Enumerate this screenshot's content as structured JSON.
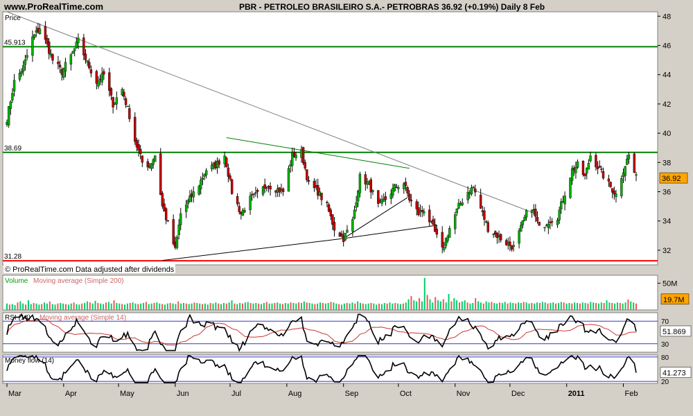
{
  "header": {
    "site": "www.ProRealTime.com",
    "title": "PBR - PETROLEO BRASILEIRO S.A.- PETROBRAS     36.92 (+0.19%)    Daily  8 Feb"
  },
  "chart_data": {
    "type": "candlestick",
    "symbol": "PBR",
    "name": "PETROLEO BRASILEIRO S.A.- PETROBRAS",
    "last_price": "36.92",
    "change": "(+0.19%)",
    "period": "Daily",
    "date": "8 Feb",
    "panel_label": "Price",
    "watermark": "© ProRealTime.com  Data adjusted after dividends",
    "y_ticks": [
      48,
      46,
      44,
      42,
      40,
      38,
      36,
      34,
      32
    ],
    "ylim": [
      31,
      48.3
    ],
    "x_labels": [
      "Mar",
      "Apr",
      "May",
      "Jun",
      "Jul",
      "Aug",
      "Sep",
      "Oct",
      "Nov",
      "Dec",
      "2011",
      "Feb"
    ],
    "horizontal_levels": [
      {
        "label": "45.913",
        "value": 45.913,
        "color": "#008000"
      },
      {
        "label": "38.69",
        "value": 38.69,
        "color": "#008000"
      },
      {
        "label": "31.28",
        "value": 31.28,
        "color": "#ff0000"
      }
    ],
    "price_label": "36.92",
    "price_path": [
      [
        "2010-03-01",
        41.0
      ],
      [
        "2010-03-05",
        43.5
      ],
      [
        "2010-03-10",
        44.5
      ],
      [
        "2010-03-15",
        46.5
      ],
      [
        "2010-03-19",
        47.2
      ],
      [
        "2010-03-23",
        46.0
      ],
      [
        "2010-03-26",
        45.0
      ],
      [
        "2010-03-31",
        44.2
      ],
      [
        "2010-04-06",
        45.5
      ],
      [
        "2010-04-09",
        46.3
      ],
      [
        "2010-04-14",
        44.8
      ],
      [
        "2010-04-19",
        43.5
      ],
      [
        "2010-04-23",
        44.0
      ],
      [
        "2010-04-28",
        42.0
      ],
      [
        "2010-05-03",
        43.0
      ],
      [
        "2010-05-07",
        41.2
      ],
      [
        "2010-05-10",
        39.5
      ],
      [
        "2010-05-14",
        38.0
      ],
      [
        "2010-05-18",
        37.8
      ],
      [
        "2010-05-21",
        38.5
      ],
      [
        "2010-05-25",
        35.0
      ],
      [
        "2010-05-28",
        33.8
      ],
      [
        "2010-06-01",
        32.0
      ],
      [
        "2010-06-04",
        34.5
      ],
      [
        "2010-06-09",
        35.5
      ],
      [
        "2010-06-14",
        36.5
      ],
      [
        "2010-06-18",
        37.5
      ],
      [
        "2010-06-23",
        37.8
      ],
      [
        "2010-06-28",
        38.5
      ],
      [
        "2010-07-02",
        36.0
      ],
      [
        "2010-07-07",
        34.5
      ],
      [
        "2010-07-12",
        35.5
      ],
      [
        "2010-07-16",
        35.8
      ],
      [
        "2010-07-21",
        36.5
      ],
      [
        "2010-07-26",
        36.2
      ],
      [
        "2010-07-30",
        36.0
      ],
      [
        "2010-08-04",
        38.5
      ],
      [
        "2010-08-09",
        38.7
      ],
      [
        "2010-08-13",
        36.5
      ],
      [
        "2010-08-18",
        36.0
      ],
      [
        "2010-08-23",
        35.0
      ],
      [
        "2010-08-27",
        33.5
      ],
      [
        "2010-09-01",
        32.8
      ],
      [
        "2010-09-06",
        34.0
      ],
      [
        "2010-09-10",
        37.0
      ],
      [
        "2010-09-15",
        36.5
      ],
      [
        "2010-09-20",
        35.0
      ],
      [
        "2010-09-24",
        35.5
      ],
      [
        "2010-09-29",
        36.3
      ],
      [
        "2010-10-04",
        36.6
      ],
      [
        "2010-10-07",
        35.5
      ],
      [
        "2010-10-12",
        34.5
      ],
      [
        "2010-10-15",
        34.8
      ],
      [
        "2010-10-20",
        33.5
      ],
      [
        "2010-10-25",
        32.0
      ],
      [
        "2010-10-29",
        33.5
      ],
      [
        "2010-11-03",
        35.0
      ],
      [
        "2010-11-08",
        36.0
      ],
      [
        "2010-11-11",
        36.3
      ],
      [
        "2010-11-16",
        34.5
      ],
      [
        "2010-11-19",
        33.5
      ],
      [
        "2010-11-24",
        33.0
      ],
      [
        "2010-11-29",
        32.5
      ],
      [
        "2010-12-03",
        32.2
      ],
      [
        "2010-12-07",
        33.5
      ],
      [
        "2010-12-10",
        34.5
      ],
      [
        "2010-12-13",
        35.0
      ],
      [
        "2010-12-17",
        33.5
      ],
      [
        "2010-12-22",
        34.0
      ],
      [
        "2010-12-27",
        34.3
      ],
      [
        "2010-12-30",
        35.5
      ],
      [
        "2011-01-04",
        37.5
      ],
      [
        "2011-01-07",
        37.8
      ],
      [
        "2011-01-11",
        37.0
      ],
      [
        "2011-01-14",
        38.5
      ],
      [
        "2011-01-19",
        37.5
      ],
      [
        "2011-01-24",
        36.5
      ],
      [
        "2011-01-28",
        35.8
      ],
      [
        "2011-02-01",
        37.5
      ],
      [
        "2011-02-04",
        38.5
      ],
      [
        "2011-02-08",
        36.92
      ]
    ],
    "trendlines": [
      {
        "from": [
          "2010-03-01",
          48.3
        ],
        "to": [
          "2010-12-15",
          34.5
        ],
        "color": "#808080"
      },
      {
        "from": [
          "2010-05-25",
          31.3
        ],
        "to": [
          "2010-09-01",
          32.8
        ],
        "color": "#000000"
      },
      {
        "from": [
          "2010-09-01",
          32.8
        ],
        "to": [
          "2010-10-22",
          33.7
        ],
        "color": "#000000"
      },
      {
        "from": [
          "2010-09-01",
          32.8
        ],
        "to": [
          "2010-10-06",
          35.6
        ],
        "color": "#000000"
      },
      {
        "from": [
          "2010-06-29",
          39.7
        ],
        "to": [
          "2010-10-07",
          37.6
        ],
        "color": "#008000"
      }
    ],
    "volume": {
      "label": "Volume",
      "ma_label": "Moving average (Simple 200)",
      "ticks": [
        "50M"
      ],
      "current": "19.7M",
      "current_value": 19.7,
      "ylim": [
        0,
        65
      ],
      "values": [
        12,
        10,
        11,
        9,
        14,
        16,
        12,
        10,
        18,
        11,
        13,
        12,
        10,
        11,
        14,
        12,
        16,
        11,
        10,
        12,
        13,
        12,
        11,
        10,
        12,
        14,
        11,
        10,
        12,
        13,
        16,
        14,
        12,
        17,
        13,
        12,
        11,
        14,
        15,
        12,
        18,
        13,
        12,
        11,
        10,
        12,
        13,
        14,
        12,
        11,
        12,
        13,
        15,
        11,
        12,
        13,
        14,
        12,
        11,
        10,
        12,
        13,
        12,
        11,
        16,
        12,
        13,
        12,
        11,
        12,
        14,
        13,
        12,
        11,
        12,
        10,
        13,
        12,
        14,
        12,
        11,
        13,
        12,
        14,
        18,
        12,
        11,
        13,
        12,
        14,
        15,
        13,
        12,
        13,
        12,
        11,
        13,
        15,
        12,
        12,
        13,
        14,
        12,
        11,
        13,
        12,
        14,
        13,
        12,
        14,
        13,
        16,
        14,
        13,
        12,
        11,
        12,
        14,
        13,
        12,
        13,
        15,
        14,
        12,
        11,
        10,
        12,
        13,
        12,
        14,
        12,
        16,
        13,
        12,
        11,
        12,
        13,
        12,
        10,
        12,
        11,
        13,
        12,
        14,
        12,
        13,
        12,
        11,
        12,
        14,
        20,
        26,
        18,
        16,
        22,
        16,
        60,
        28,
        20,
        14,
        24,
        18,
        16,
        20,
        14,
        30,
        16,
        22,
        18,
        14,
        16,
        18,
        14,
        12,
        13,
        22,
        16,
        14,
        12,
        16,
        14,
        15,
        13,
        12,
        14,
        13,
        15,
        12,
        14,
        13,
        12,
        14,
        13,
        15,
        14,
        12,
        13,
        12,
        14,
        13,
        15,
        14,
        12,
        13,
        14,
        12,
        13,
        15,
        14,
        12,
        13,
        12,
        14,
        13,
        12,
        14,
        13,
        12,
        15,
        14,
        13,
        12,
        14,
        13,
        18,
        14,
        13,
        12,
        14,
        13,
        12,
        14,
        19.7,
        16,
        14,
        12
      ]
    },
    "rsi": {
      "label": "RSI (14)",
      "ma_label": "Moving average (Simple 14)",
      "levels": [
        "70",
        "30"
      ],
      "current": "51.869",
      "current_value": 51.869,
      "ylim": [
        15,
        85
      ]
    },
    "money_flow": {
      "label": "Money flow (14)",
      "levels": [
        "80",
        "20"
      ],
      "current": "41.273",
      "current_value": 41.273,
      "ylim": [
        15,
        85
      ]
    },
    "colors": {
      "up": "#00b000",
      "down": "#c00000",
      "panel_bg": "#ffffff",
      "frame_bg": "#d4d0c8",
      "price_tag": "#ffa500",
      "volume_up": "#00cc66",
      "volume_down": "#ff5050",
      "volume_label": "#00a000",
      "ma_label": "#cc6666",
      "level_line": "#3333cc",
      "last_value_bg": "#ffff00",
      "volume_tag_bg": "#ffa500"
    }
  }
}
